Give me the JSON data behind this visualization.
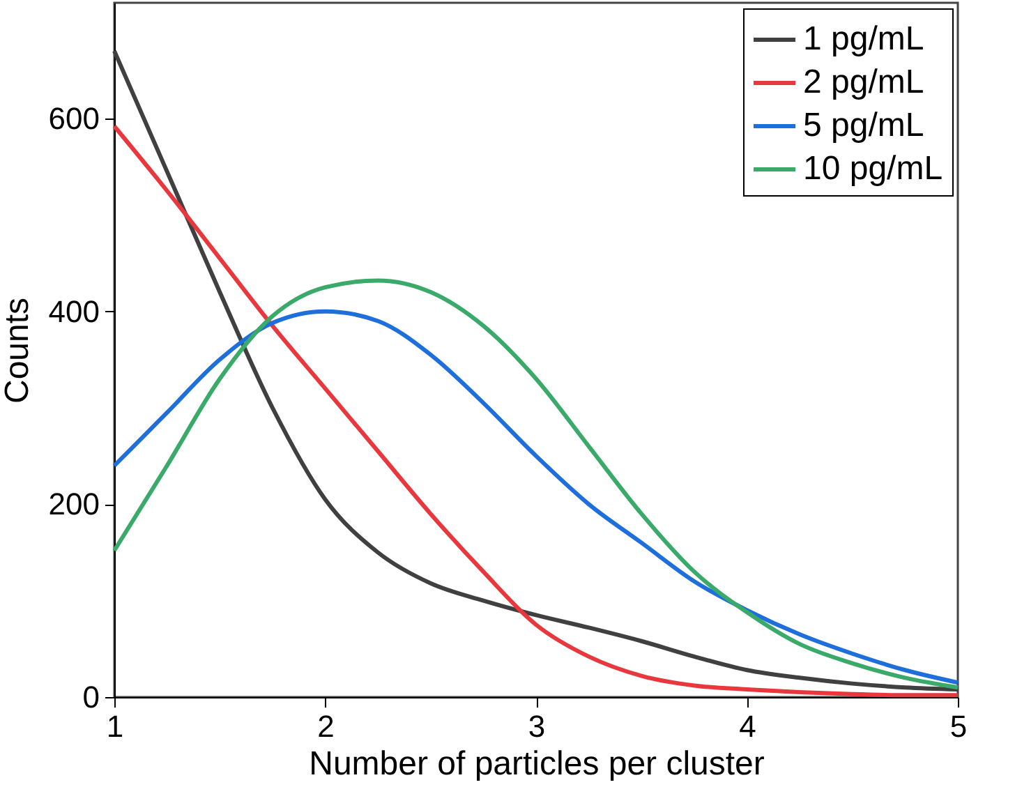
{
  "chart_data": {
    "type": "line",
    "xlabel": "Number of particles per cluster",
    "ylabel": "Counts",
    "x": [
      1,
      1.25,
      1.5,
      1.75,
      2,
      2.25,
      2.5,
      2.75,
      3,
      3.25,
      3.5,
      3.75,
      4,
      4.25,
      4.5,
      4.75,
      5
    ],
    "series": [
      {
        "name": "1   pg/mL",
        "color": "#404040",
        "values": [
          670,
          545,
          420,
          300,
          205,
          150,
          118,
          100,
          85,
          72,
          58,
          42,
          28,
          20,
          14,
          10,
          8
        ]
      },
      {
        "name": "2   pg/mL",
        "color": "#e8383d",
        "values": [
          592,
          525,
          455,
          385,
          320,
          255,
          190,
          130,
          75,
          42,
          22,
          12,
          8,
          5,
          3,
          2,
          2
        ]
      },
      {
        "name": "5   pg/mL",
        "color": "#1e6fdc",
        "values": [
          240,
          295,
          350,
          388,
          400,
          390,
          355,
          305,
          250,
          200,
          160,
          120,
          90,
          65,
          45,
          28,
          15
        ]
      },
      {
        "name": "10 pg/mL",
        "color": "#3aaa6a",
        "values": [
          152,
          240,
          330,
          395,
          425,
          432,
          420,
          385,
          330,
          260,
          190,
          130,
          88,
          55,
          35,
          20,
          10
        ]
      }
    ],
    "xlim": [
      1,
      5
    ],
    "xticks": [
      1,
      2,
      3,
      4,
      5
    ],
    "ylim": [
      0,
      720
    ],
    "yticks": [
      0,
      200,
      400,
      600
    ],
    "grid": false,
    "legend": "top right",
    "marker": "none",
    "line_style": "solid"
  }
}
